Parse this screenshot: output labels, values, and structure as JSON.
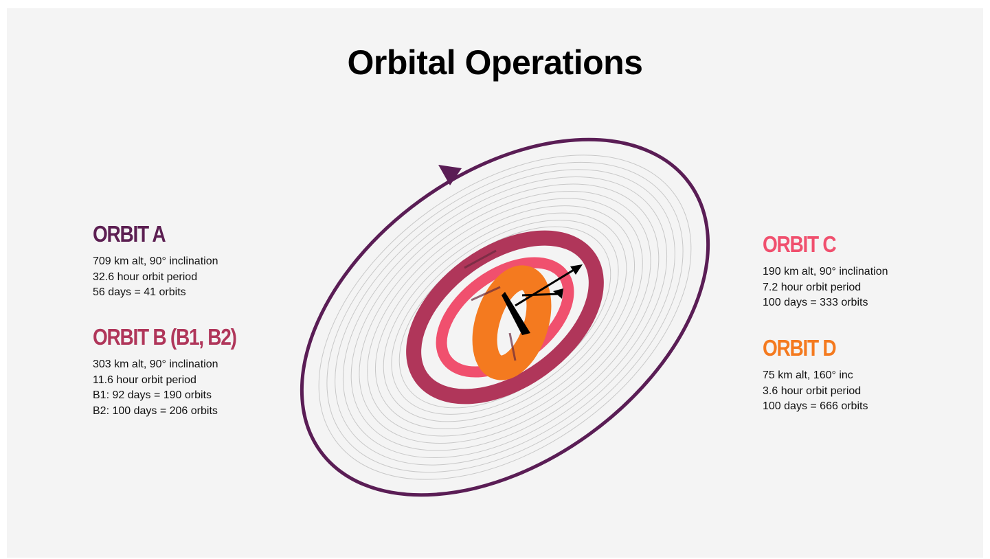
{
  "title": "Orbital Operations",
  "orbits": [
    {
      "heading": "ORBIT A",
      "lines": [
        "709 km alt, 90° inclination",
        "32.6 hour orbit period",
        "56 days = 41 orbits"
      ]
    },
    {
      "heading": "ORBIT B (B1, B2)",
      "lines": [
        "303 km alt, 90° inclination",
        "11.6 hour orbit period",
        "B1: 92 days = 190 orbits",
        "B2: 100 days = 206 orbits"
      ]
    },
    {
      "heading": "ORBIT C",
      "lines": [
        "190 km alt, 90° inclination",
        "7.2 hour orbit period",
        "100 days = 333 orbits"
      ]
    },
    {
      "heading": "ORBIT D",
      "lines": [
        "75 km alt, 160° inc",
        "3.6 hour orbit period",
        "100 days = 666 orbits"
      ]
    }
  ]
}
